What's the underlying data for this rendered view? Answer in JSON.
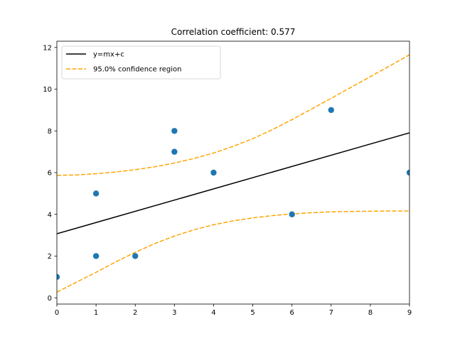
{
  "chart_data": {
    "type": "scatter",
    "title": "Correlation coefficient: 0.577",
    "xlabel": "",
    "ylabel": "",
    "xlim": [
      0,
      9
    ],
    "ylim": [
      -0.3,
      12.3
    ],
    "xticks": [
      0,
      1,
      2,
      3,
      4,
      5,
      6,
      7,
      8,
      9
    ],
    "yticks": [
      0,
      2,
      4,
      6,
      8,
      10,
      12
    ],
    "grid": false,
    "legend_position": "top-left",
    "points": {
      "x": [
        0,
        1,
        1,
        2,
        3,
        3,
        4,
        6,
        7,
        9
      ],
      "y": [
        1,
        5,
        2,
        2,
        8,
        7,
        6,
        4,
        9,
        6
      ],
      "color": "#1f77b4"
    },
    "series": [
      {
        "name": "y=mx+c",
        "style": "solid",
        "color": "#000000",
        "x": [
          0,
          9
        ],
        "y": [
          3.07,
          7.91
        ]
      },
      {
        "name": "95.0% confidence region",
        "style": "dashed",
        "color": "#ffa500",
        "x": [
          0,
          0.5,
          1,
          1.5,
          2,
          2.5,
          3,
          3.5,
          4,
          4.5,
          5,
          5.5,
          6,
          6.5,
          7,
          7.5,
          8,
          8.5,
          9
        ],
        "y_upper": [
          5.87,
          5.89,
          5.95,
          6.03,
          6.14,
          6.28,
          6.46,
          6.68,
          6.94,
          7.26,
          7.63,
          8.06,
          8.54,
          9.05,
          9.56,
          10.08,
          10.6,
          11.12,
          11.65
        ],
        "y_lower": [
          0.27,
          0.75,
          1.22,
          1.72,
          2.18,
          2.6,
          2.96,
          3.26,
          3.5,
          3.69,
          3.83,
          3.94,
          4.02,
          4.08,
          4.12,
          4.14,
          4.15,
          4.16,
          4.16
        ]
      }
    ]
  }
}
